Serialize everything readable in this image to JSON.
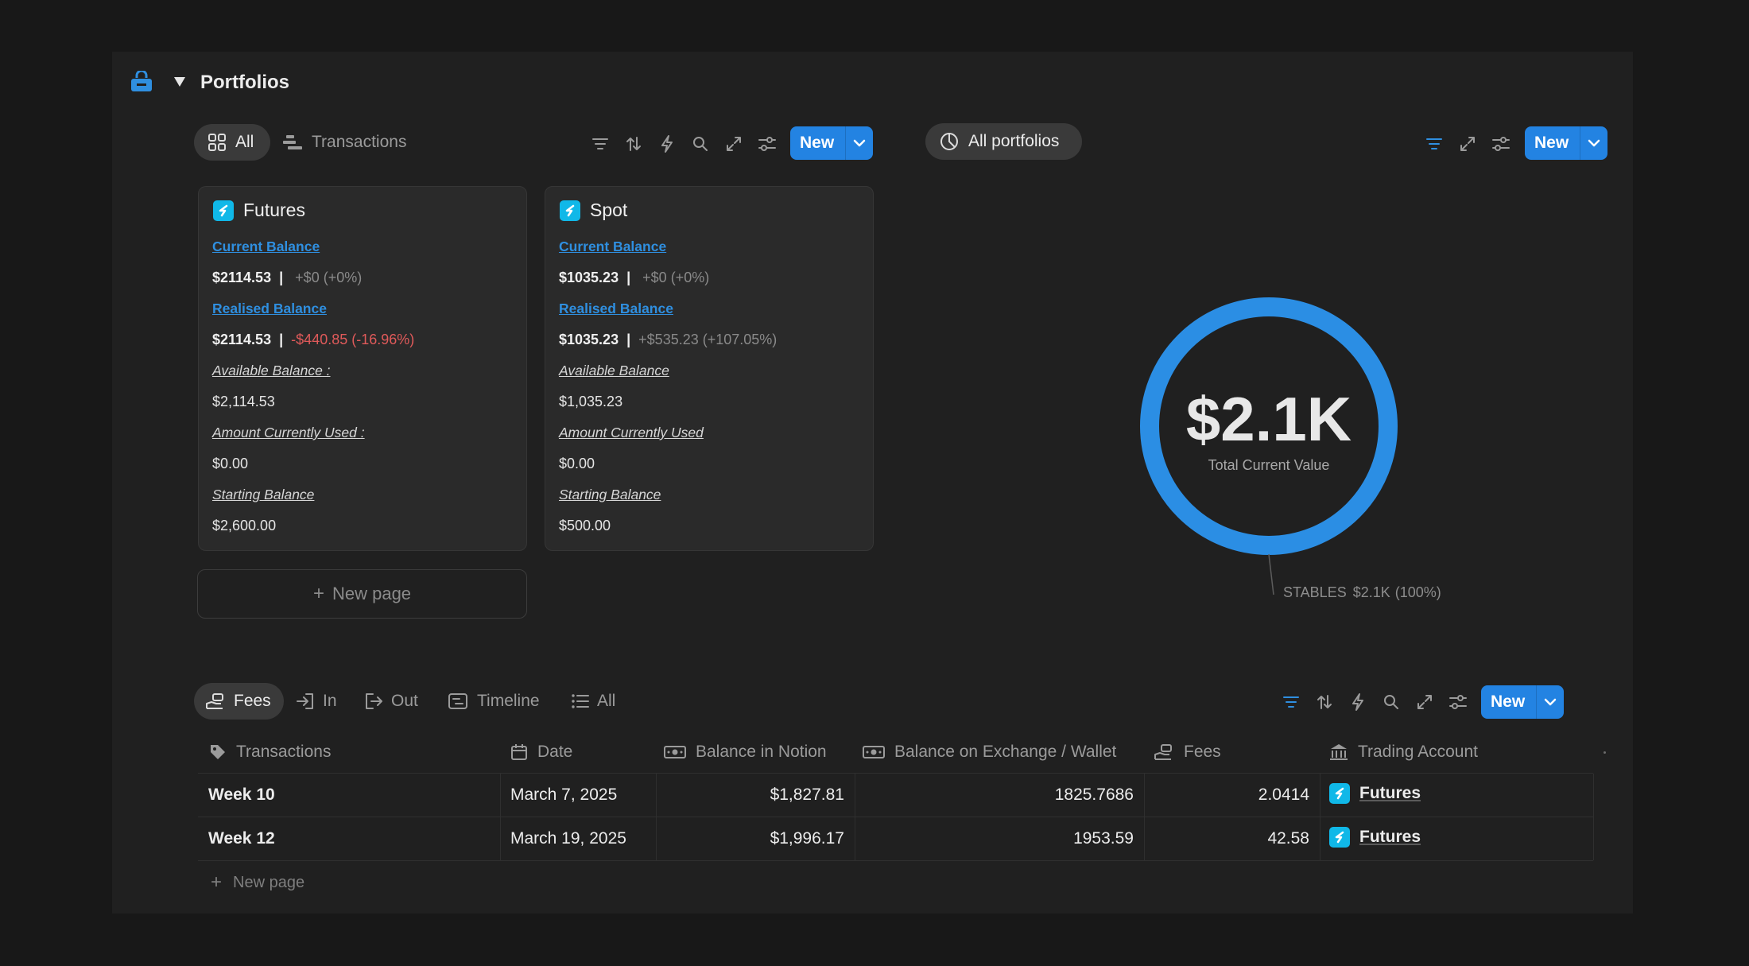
{
  "page": {
    "title": "Portfolios"
  },
  "top_view": {
    "tabs": [
      {
        "label": "All"
      },
      {
        "label": "Transactions"
      }
    ],
    "new_label": "New"
  },
  "cards": [
    {
      "name": "Futures",
      "current_balance_label": "Current Balance",
      "current_balance_value": "$2114.53",
      "current_balance_sep": "|",
      "current_balance_change": "+$0 (+0%)",
      "realised_balance_label": "Realised Balance",
      "realised_balance_value": "$2114.53",
      "realised_balance_sep": "|",
      "realised_balance_change": "-$440.85 (-16.96%)",
      "available_label": "Available Balance :",
      "available_value": "$2,114.53",
      "used_label": "Amount Currently Used :",
      "used_value": "$0.00",
      "starting_label": "Starting Balance",
      "starting_value": "$2,600.00"
    },
    {
      "name": "Spot",
      "current_balance_label": "Current Balance",
      "current_balance_value": "$1035.23",
      "current_balance_sep": "|",
      "current_balance_change": "+$0 (+0%)",
      "realised_balance_label": "Realised Balance",
      "realised_balance_value": "$1035.23",
      "realised_balance_sep": "|",
      "realised_balance_change": "+$535.23 (+107.05%)",
      "available_label": "Available Balance",
      "available_value": "$1,035.23",
      "used_label": "Amount Currently Used",
      "used_value": "$0.00",
      "starting_label": "Starting Balance",
      "starting_value": "$500.00"
    }
  ],
  "new_page_label": "New page",
  "chart_view": {
    "pill_label": "All portfolios",
    "new_label": "New"
  },
  "chart_data": {
    "type": "pie",
    "style": "donut",
    "center_value": "$2.1K",
    "center_label": "Total Current Value",
    "slices": [
      {
        "label": "STABLES",
        "value": 2.1,
        "value_text": "$2.1K",
        "percent": 100,
        "percent_text": "(100%)",
        "color": "#2b8ee4"
      }
    ]
  },
  "table_view": {
    "tabs": [
      {
        "label": "Fees"
      },
      {
        "label": "In"
      },
      {
        "label": "Out"
      },
      {
        "label": "Timeline"
      },
      {
        "label": "All"
      }
    ],
    "new_label": "New",
    "columns": [
      "Transactions",
      "Date",
      "Balance in Notion",
      "Balance on Exchange / Wallet",
      "Fees",
      "Trading Account"
    ],
    "rows": [
      {
        "name": "Week 10",
        "date": "March 7, 2025",
        "balance_notion": "$1,827.81",
        "balance_exchange": "1825.7686",
        "fees": "2.0414",
        "account": "Futures"
      },
      {
        "name": "Week 12",
        "date": "March 19, 2025",
        "balance_notion": "$1,996.17",
        "balance_exchange": "1953.59",
        "fees": "42.58",
        "account": "Futures"
      }
    ],
    "new_page_label": "New page"
  },
  "colors": {
    "accent": "#2383e2",
    "link": "#2f8fe0",
    "negative": "#e05a5a",
    "panel": "#202020",
    "background": "#181818"
  }
}
